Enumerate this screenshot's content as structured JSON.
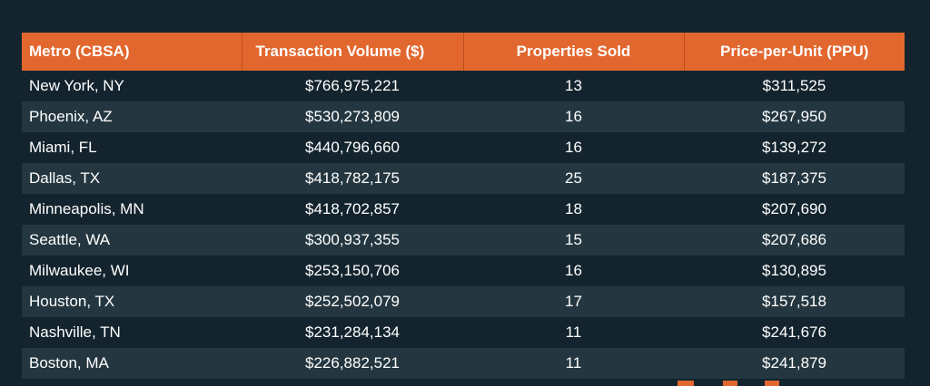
{
  "table": {
    "headers": {
      "metro": "Metro (CBSA)",
      "volume": "Transaction Volume ($)",
      "sold": "Properties Sold",
      "ppu": "Price-per-Unit (PPU)"
    },
    "rows": [
      {
        "metro": "New York, NY",
        "volume": "$766,975,221",
        "sold": "13",
        "ppu": "$311,525"
      },
      {
        "metro": "Phoenix, AZ",
        "volume": "$530,273,809",
        "sold": "16",
        "ppu": "$267,950"
      },
      {
        "metro": "Miami, FL",
        "volume": "$440,796,660",
        "sold": "16",
        "ppu": "$139,272"
      },
      {
        "metro": "Dallas, TX",
        "volume": "$418,782,175",
        "sold": "25",
        "ppu": "$187,375"
      },
      {
        "metro": "Minneapolis, MN",
        "volume": "$418,702,857",
        "sold": "18",
        "ppu": "$207,690"
      },
      {
        "metro": "Seattle, WA",
        "volume": "$300,937,355",
        "sold": "15",
        "ppu": "$207,686"
      },
      {
        "metro": "Milwaukee, WI",
        "volume": "$253,150,706",
        "sold": "16",
        "ppu": "$130,895"
      },
      {
        "metro": "Houston, TX",
        "volume": "$252,502,079",
        "sold": "17",
        "ppu": "$157,518"
      },
      {
        "metro": "Nashville, TN",
        "volume": "$231,284,134",
        "sold": "11",
        "ppu": "$241,676"
      },
      {
        "metro": "Boston, MA",
        "volume": "$226,882,521",
        "sold": "11",
        "ppu": "$241,879"
      }
    ]
  },
  "colors": {
    "background": "#13242e",
    "header": "#e2672e",
    "row_alt": "#243740",
    "text": "#ffffff"
  }
}
